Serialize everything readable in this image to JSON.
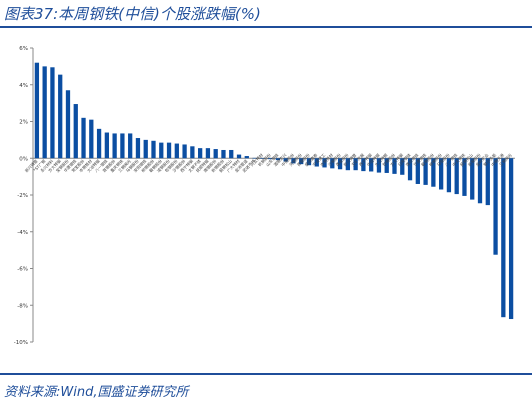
{
  "figure": {
    "title": "图表37:本周钢铁(中信)个股涨跌幅(%)",
    "source": "资料来源:Wind,国盛证券研究所"
  },
  "colors": {
    "bar": "#0b4ea2",
    "axis": "#888888",
    "title": "#1f4e9a"
  },
  "chart_data": {
    "type": "bar",
    "title": "",
    "xlabel": "",
    "ylabel": "",
    "ylim": [
      -10,
      6
    ],
    "yticks": [
      6,
      4,
      2,
      0,
      -2,
      -4,
      -6,
      -8,
      -10
    ],
    "ytick_labels": [
      "6%",
      "4%",
      "2%",
      "0%",
      "-2%",
      "-4%",
      "-6%",
      "-8%",
      "-10%"
    ],
    "grid": false,
    "legend": "none",
    "categories": [
      "新兴铸管",
      "*ST广钢",
      "永兴材料",
      "方大特钢",
      "宝钢股份",
      "华菱钢铁",
      "常宝股份",
      "本钢板材",
      "大冶特钢",
      "八一钢铁",
      "首钢股份",
      "重庆钢铁",
      "三钢闽光",
      "马钢股份",
      "安阳钢铁",
      "柳钢股份",
      "鞍钢股份",
      "凌钢股份",
      "包钢股份",
      "沙钢股份",
      "西宁特钢",
      "太钢不锈",
      "抚顺特钢",
      "南钢股份",
      "新钢股份",
      "韶钢松山",
      "广大特材",
      "金洲管道",
      "武进不锈",
      "久立特材",
      "杭钢股份",
      "山东钢铁",
      "酒钢宏兴",
      "中南股份",
      "河钢股份",
      "首钢股份",
      "盛德鑫泰",
      "宁波建工",
      "本钢板材",
      "沙钢股份",
      "甬金股份",
      "新兴铸管",
      "五矿发展",
      "西宁特钢",
      "中信特钢",
      "大冶特钢",
      "包钢股份",
      "方大特钢",
      "日照钢铁",
      "南京钢铁",
      "华菱钢铁",
      "鞍钢股份",
      "柳钢股份",
      "马钢股份",
      "八一钢铁",
      "中天钢铁",
      "韶钢松山",
      "新钢股份",
      "金岭矿业",
      "鄂尔多斯",
      "中钢天源",
      "三钢闽光"
    ],
    "values": [
      5.2,
      5.0,
      4.95,
      4.55,
      3.7,
      2.95,
      2.2,
      2.1,
      1.6,
      1.4,
      1.35,
      1.35,
      1.35,
      1.1,
      1.0,
      0.95,
      0.85,
      0.85,
      0.8,
      0.75,
      0.65,
      0.55,
      0.55,
      0.5,
      0.45,
      0.45,
      0.2,
      0.12,
      0.02,
      -0.02,
      -0.05,
      -0.1,
      -0.18,
      -0.28,
      -0.32,
      -0.38,
      -0.45,
      -0.5,
      -0.55,
      -0.6,
      -0.65,
      -0.65,
      -0.7,
      -0.72,
      -0.78,
      -0.8,
      -0.85,
      -0.9,
      -1.2,
      -1.4,
      -1.45,
      -1.55,
      -1.7,
      -1.85,
      -1.95,
      -2.05,
      -2.25,
      -2.45,
      -2.55,
      -5.25,
      -8.65,
      -8.75
    ],
    "ylim_note": ""
  }
}
